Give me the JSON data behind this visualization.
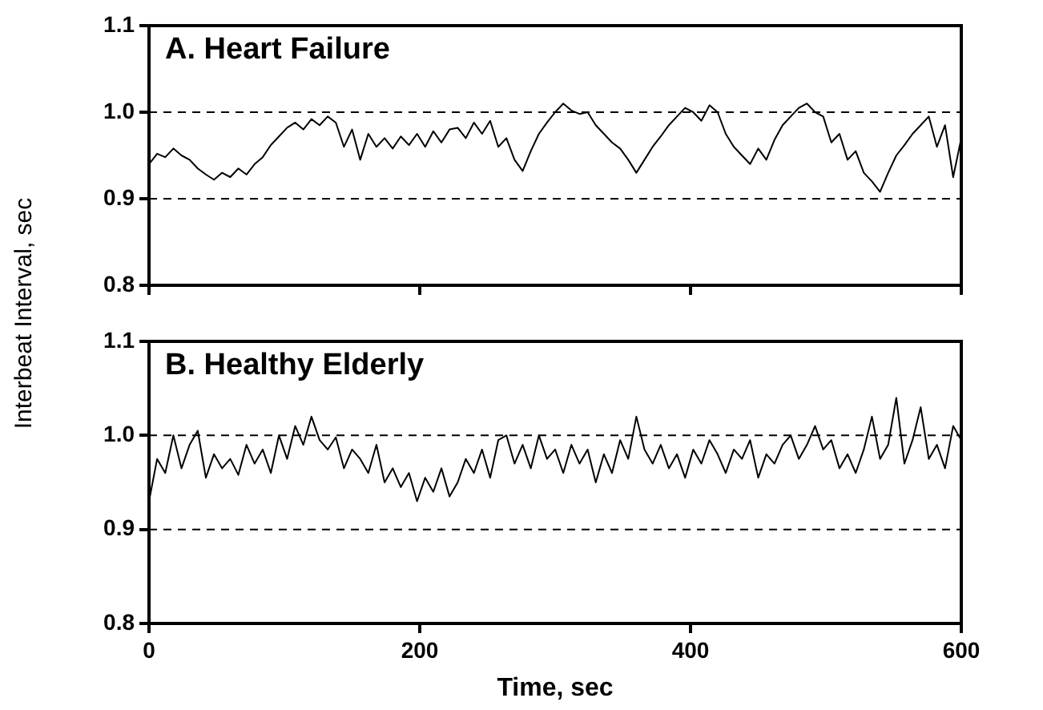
{
  "chart_data": [
    {
      "type": "line",
      "title": "A. Heart Failure",
      "ylabel": "Interbeat Interval, sec",
      "xlim": [
        0,
        600
      ],
      "xticks": [
        0,
        200,
        400,
        600
      ],
      "ylim": [
        0.8,
        1.1
      ],
      "tick_labels": "y",
      "yticks": [
        0.8,
        0.9,
        {
          "value": 1,
          "label": "1.0"
        },
        1.1
      ],
      "grid": false,
      "legend": false,
      "marker": "none",
      "line_style": "solid",
      "ref_lines": [
        {
          "axis": "y",
          "value": 1.0,
          "line_style": "dashed",
          "color": "#000000"
        },
        {
          "axis": "y",
          "value": 0.9,
          "line_style": "dashed",
          "color": "#000000"
        }
      ],
      "x": [
        0,
        6,
        12,
        18,
        24,
        30,
        36,
        42,
        48,
        54,
        60,
        66,
        72,
        78,
        84,
        90,
        96,
        102,
        108,
        114,
        120,
        126,
        132,
        138,
        144,
        150,
        156,
        162,
        168,
        174,
        180,
        186,
        192,
        198,
        204,
        210,
        216,
        222,
        228,
        234,
        240,
        246,
        252,
        258,
        264,
        270,
        276,
        282,
        288,
        294,
        300,
        306,
        312,
        318,
        324,
        330,
        336,
        342,
        348,
        354,
        360,
        366,
        372,
        378,
        384,
        390,
        396,
        402,
        408,
        414,
        420,
        426,
        432,
        438,
        444,
        450,
        456,
        462,
        468,
        474,
        480,
        486,
        492,
        498,
        504,
        510,
        516,
        522,
        528,
        534,
        540,
        546,
        552,
        558,
        564,
        570,
        576,
        582,
        588,
        594,
        600
      ],
      "series": [
        {
          "color": "#000000",
          "values": [
            0.94,
            0.952,
            0.948,
            0.958,
            0.95,
            0.945,
            0.935,
            0.928,
            0.922,
            0.93,
            0.925,
            0.935,
            0.928,
            0.94,
            0.948,
            0.962,
            0.972,
            0.982,
            0.988,
            0.98,
            0.992,
            0.985,
            0.995,
            0.988,
            0.96,
            0.98,
            0.945,
            0.975,
            0.96,
            0.97,
            0.958,
            0.972,
            0.962,
            0.975,
            0.96,
            0.978,
            0.965,
            0.98,
            0.982,
            0.97,
            0.988,
            0.975,
            0.99,
            0.96,
            0.97,
            0.945,
            0.932,
            0.955,
            0.975,
            0.988,
            1.0,
            1.01,
            1.002,
            0.998,
            1.0,
            0.985,
            0.975,
            0.965,
            0.958,
            0.945,
            0.93,
            0.945,
            0.96,
            0.972,
            0.985,
            0.995,
            1.005,
            1.0,
            0.99,
            1.008,
            1.0,
            0.975,
            0.96,
            0.95,
            0.94,
            0.958,
            0.945,
            0.968,
            0.985,
            0.995,
            1.005,
            1.01,
            1.0,
            0.995,
            0.965,
            0.975,
            0.945,
            0.955,
            0.93,
            0.92,
            0.908,
            0.93,
            0.95,
            0.962,
            0.975,
            0.985,
            0.995,
            0.96,
            0.985,
            0.925,
            0.97
          ]
        }
      ]
    },
    {
      "type": "line",
      "title": "B. Healthy Elderly",
      "xlabel": "Time, sec",
      "xlim": [
        0,
        600
      ],
      "xticks": [
        0,
        200,
        400,
        600
      ],
      "ylim": [
        0.8,
        1.1
      ],
      "yticks": [
        0.8,
        0.9,
        {
          "value": 1,
          "label": "1.0"
        },
        1.1
      ],
      "grid": false,
      "legend": false,
      "marker": "none",
      "line_style": "solid",
      "ref_lines": [
        {
          "axis": "y",
          "value": 1.0,
          "line_style": "dashed",
          "color": "#000000"
        },
        {
          "axis": "y",
          "value": 0.9,
          "line_style": "dashed",
          "color": "#000000"
        }
      ],
      "x": [
        0,
        6,
        12,
        18,
        24,
        30,
        36,
        42,
        48,
        54,
        60,
        66,
        72,
        78,
        84,
        90,
        96,
        102,
        108,
        114,
        120,
        126,
        132,
        138,
        144,
        150,
        156,
        162,
        168,
        174,
        180,
        186,
        192,
        198,
        204,
        210,
        216,
        222,
        228,
        234,
        240,
        246,
        252,
        258,
        264,
        270,
        276,
        282,
        288,
        294,
        300,
        306,
        312,
        318,
        324,
        330,
        336,
        342,
        348,
        354,
        360,
        366,
        372,
        378,
        384,
        390,
        396,
        402,
        408,
        414,
        420,
        426,
        432,
        438,
        444,
        450,
        456,
        462,
        468,
        474,
        480,
        486,
        492,
        498,
        504,
        510,
        516,
        522,
        528,
        534,
        540,
        546,
        552,
        558,
        564,
        570,
        576,
        582,
        588,
        594,
        600
      ],
      "series": [
        {
          "color": "#000000",
          "values": [
            0.93,
            0.975,
            0.96,
            1.0,
            0.965,
            0.99,
            1.005,
            0.955,
            0.98,
            0.965,
            0.975,
            0.958,
            0.99,
            0.97,
            0.985,
            0.96,
            1.0,
            0.975,
            1.01,
            0.99,
            1.02,
            0.995,
            0.985,
            0.998,
            0.965,
            0.985,
            0.975,
            0.96,
            0.99,
            0.95,
            0.965,
            0.945,
            0.96,
            0.93,
            0.955,
            0.94,
            0.965,
            0.935,
            0.95,
            0.975,
            0.96,
            0.985,
            0.955,
            0.995,
            1.0,
            0.97,
            0.99,
            0.965,
            1.0,
            0.975,
            0.985,
            0.96,
            0.99,
            0.97,
            0.985,
            0.95,
            0.98,
            0.96,
            0.995,
            0.975,
            1.02,
            0.985,
            0.97,
            0.99,
            0.965,
            0.98,
            0.955,
            0.985,
            0.97,
            0.995,
            0.98,
            0.96,
            0.985,
            0.975,
            0.995,
            0.955,
            0.98,
            0.97,
            0.99,
            1.0,
            0.975,
            0.99,
            1.01,
            0.985,
            0.995,
            0.965,
            0.98,
            0.96,
            0.985,
            1.02,
            0.975,
            0.99,
            1.04,
            0.97,
            0.995,
            1.03,
            0.975,
            0.99,
            0.965,
            1.01,
            0.995
          ]
        }
      ]
    }
  ]
}
